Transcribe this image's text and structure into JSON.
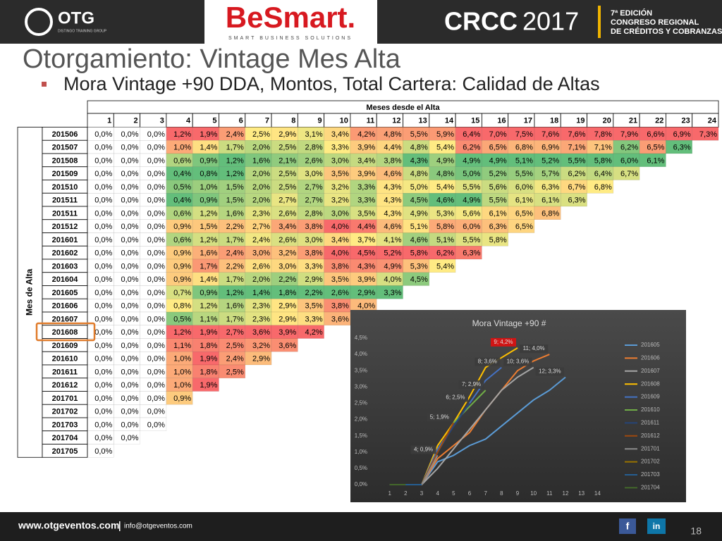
{
  "header": {
    "logo_otg": "OTG",
    "logo_otg_sub": "DISTINGO TRAINING GROUP",
    "besmart": "BeSmart.",
    "besmart_sub": "SMART BUSINESS SOLUTIONS",
    "crcc": "CRCC",
    "crcc_year": "2017",
    "edition": [
      "7ª EDICIÓN",
      "CONGRESO REGIONAL",
      "DE CRÉDITOS Y COBRANZAS"
    ]
  },
  "slide": {
    "title": "Otorgamiento: Vintage Mes Alta",
    "bullet": "Mora Vintage +90 DDA, Montos, Total Cartera: Calidad de Altas"
  },
  "table": {
    "top_header": "Meses desde el Alta",
    "row_header": "Mes de Alta",
    "columns": [
      1,
      2,
      3,
      4,
      5,
      6,
      7,
      8,
      9,
      10,
      11,
      12,
      13,
      14,
      15,
      16,
      17,
      18,
      19,
      20,
      21,
      22,
      23,
      24
    ],
    "rows": [
      {
        "label": "201506",
        "cells": [
          "0,0%",
          "0,0%",
          "0,0%",
          "1,2%",
          "1,9%",
          "2,4%",
          "2,5%",
          "2,9%",
          "3,1%",
          "3,4%",
          "4,2%",
          "4,8%",
          "5,5%",
          "5,9%",
          "6,4%",
          "7,0%",
          "7,5%",
          "7,6%",
          "7,6%",
          "7,8%",
          "7,9%",
          "6,6%",
          "6,9%",
          "7,3%"
        ]
      },
      {
        "label": "201507",
        "cells": [
          "0,0%",
          "0,0%",
          "0,0%",
          "1,0%",
          "1,4%",
          "1,7%",
          "2,0%",
          "2,5%",
          "2,8%",
          "3,3%",
          "3,9%",
          "4,4%",
          "4,8%",
          "5,4%",
          "6,2%",
          "6,5%",
          "6,8%",
          "6,9%",
          "7,1%",
          "7,1%",
          "6,2%",
          "6,5%",
          "6,3%"
        ]
      },
      {
        "label": "201508",
        "cells": [
          "0,0%",
          "0,0%",
          "0,0%",
          "0,6%",
          "0,9%",
          "1,2%",
          "1,6%",
          "2,1%",
          "2,6%",
          "3,0%",
          "3,4%",
          "3,8%",
          "4,3%",
          "4,9%",
          "4,9%",
          "4,9%",
          "5,1%",
          "5,2%",
          "5,5%",
          "5,8%",
          "6,0%",
          "6,1%"
        ]
      },
      {
        "label": "201509",
        "cells": [
          "0,0%",
          "0,0%",
          "0,0%",
          "0,4%",
          "0,8%",
          "1,2%",
          "2,0%",
          "2,5%",
          "3,0%",
          "3,5%",
          "3,9%",
          "4,6%",
          "4,8%",
          "4,8%",
          "5,0%",
          "5,2%",
          "5,5%",
          "5,7%",
          "6,2%",
          "6,4%",
          "6,7%"
        ]
      },
      {
        "label": "201510",
        "cells": [
          "0,0%",
          "0,0%",
          "0,0%",
          "0,5%",
          "1,0%",
          "1,5%",
          "2,0%",
          "2,5%",
          "2,7%",
          "3,2%",
          "3,3%",
          "4,3%",
          "5,0%",
          "5,4%",
          "5,5%",
          "5,6%",
          "6,0%",
          "6,3%",
          "6,7%",
          "6,8%"
        ]
      },
      {
        "label": "201511",
        "cells": [
          "0,0%",
          "0,0%",
          "0,0%",
          "0,4%",
          "0,9%",
          "1,5%",
          "2,0%",
          "2,7%",
          "2,7%",
          "3,2%",
          "3,3%",
          "4,3%",
          "4,5%",
          "4,6%",
          "4,9%",
          "5,5%",
          "6,1%",
          "6,1%",
          "6,3%"
        ]
      },
      {
        "label": "201511",
        "cells": [
          "0,0%",
          "0,0%",
          "0,0%",
          "0,6%",
          "1,2%",
          "1,6%",
          "2,3%",
          "2,6%",
          "2,8%",
          "3,0%",
          "3,5%",
          "4,3%",
          "4,9%",
          "5,3%",
          "5,6%",
          "6,1%",
          "6,5%",
          "6,8%"
        ]
      },
      {
        "label": "201512",
        "cells": [
          "0,0%",
          "0,0%",
          "0,0%",
          "0,9%",
          "1,5%",
          "2,2%",
          "2,7%",
          "3,4%",
          "3,8%",
          "4,0%",
          "4,4%",
          "4,6%",
          "5,1%",
          "5,8%",
          "6,0%",
          "6,3%",
          "6,5%"
        ]
      },
      {
        "label": "201601",
        "cells": [
          "0,0%",
          "0,0%",
          "0,0%",
          "0,6%",
          "1,2%",
          "1,7%",
          "2,4%",
          "2,6%",
          "3,0%",
          "3,4%",
          "3,7%",
          "4,1%",
          "4,6%",
          "5,1%",
          "5,5%",
          "5,8%"
        ]
      },
      {
        "label": "201602",
        "cells": [
          "0,0%",
          "0,0%",
          "0,0%",
          "0,9%",
          "1,6%",
          "2,4%",
          "3,0%",
          "3,2%",
          "3,8%",
          "4,0%",
          "4,5%",
          "5,2%",
          "5,8%",
          "6,2%",
          "6,3%"
        ]
      },
      {
        "label": "201603",
        "cells": [
          "0,0%",
          "0,0%",
          "0,0%",
          "0,9%",
          "1,7%",
          "2,2%",
          "2,6%",
          "3,0%",
          "3,3%",
          "3,8%",
          "4,3%",
          "4,9%",
          "5,3%",
          "5,4%"
        ]
      },
      {
        "label": "201604",
        "cells": [
          "0,0%",
          "0,0%",
          "0,0%",
          "0,9%",
          "1,4%",
          "1,7%",
          "2,0%",
          "2,2%",
          "2,9%",
          "3,5%",
          "3,9%",
          "4,0%",
          "4,5%"
        ]
      },
      {
        "label": "201605",
        "cells": [
          "0,0%",
          "0,0%",
          "0,0%",
          "0,7%",
          "0,9%",
          "1,2%",
          "1,4%",
          "1,8%",
          "2,2%",
          "2,6%",
          "2,9%",
          "3,3%"
        ]
      },
      {
        "label": "201606",
        "cells": [
          "0,0%",
          "0,0%",
          "0,0%",
          "0,8%",
          "1,2%",
          "1,6%",
          "2,3%",
          "2,9%",
          "3,5%",
          "3,8%",
          "4,0%"
        ]
      },
      {
        "label": "201607",
        "cells": [
          "0,0%",
          "0,0%",
          "0,0%",
          "0,5%",
          "1,1%",
          "1,7%",
          "2,3%",
          "2,9%",
          "3,3%",
          "3,6%"
        ]
      },
      {
        "label": "201608",
        "cells": [
          "0,0%",
          "0,0%",
          "0,0%",
          "1,2%",
          "1,9%",
          "2,7%",
          "3,6%",
          "3,9%",
          "4,2%"
        ]
      },
      {
        "label": "201609",
        "cells": [
          "0,0%",
          "0,0%",
          "0,0%",
          "1,1%",
          "1,8%",
          "2,5%",
          "3,2%",
          "3,6%"
        ]
      },
      {
        "label": "201610",
        "cells": [
          "0,0%",
          "0,0%",
          "0,0%",
          "1,0%",
          "1,9%",
          "2,4%",
          "2,9%"
        ]
      },
      {
        "label": "201611",
        "cells": [
          "0,0%",
          "0,0%",
          "0,0%",
          "1,0%",
          "1,8%",
          "2,5%"
        ]
      },
      {
        "label": "201612",
        "cells": [
          "0,0%",
          "0,0%",
          "0,0%",
          "1,0%",
          "1,9%"
        ]
      },
      {
        "label": "201701",
        "cells": [
          "0,0%",
          "0,0%",
          "0,0%",
          "0,9%"
        ]
      },
      {
        "label": "201702",
        "cells": [
          "0,0%",
          "0,0%",
          "0,0%"
        ]
      },
      {
        "label": "201703",
        "cells": [
          "0,0%",
          "0,0%",
          "0,0%"
        ]
      },
      {
        "label": "201704",
        "cells": [
          "0,0%",
          "0,0%"
        ]
      },
      {
        "label": "201705",
        "cells": [
          "0,0%"
        ]
      }
    ]
  },
  "chart_data": {
    "type": "line",
    "title": "Mora Vintage +90 #",
    "x": [
      1,
      2,
      3,
      4,
      5,
      6,
      7,
      8,
      9,
      10,
      11,
      12,
      13,
      14
    ],
    "xlim": [
      0,
      15
    ],
    "xticks": [
      1,
      2,
      3,
      4,
      5,
      6,
      7,
      8,
      9,
      10,
      11,
      12,
      13,
      14
    ],
    "ylim": [
      0,
      4.5
    ],
    "yticks": [
      {
        "value": 0,
        "label": "0,0%"
      },
      {
        "value": 0.5,
        "label": "0,5%"
      },
      {
        "value": 1,
        "label": "1,0%"
      },
      {
        "value": 1.5,
        "label": "1,5%"
      },
      {
        "value": 2,
        "label": "2,0%"
      },
      {
        "value": 2.5,
        "label": "2,5%"
      },
      {
        "value": 3,
        "label": "3,0%"
      },
      {
        "value": 3.5,
        "label": "3,5%"
      },
      {
        "value": 4,
        "label": "4,0%"
      },
      {
        "value": 4.5,
        "label": "4,5%"
      }
    ],
    "grid": false,
    "legend": "right",
    "series": [
      {
        "name": "201605",
        "color": "#5b9bd5",
        "values": [
          0,
          0,
          0,
          0.7,
          0.9,
          1.2,
          1.4,
          1.8,
          2.2,
          2.6,
          2.9,
          3.3,
          null,
          null
        ],
        "value_labels": [
          null,
          null,
          null,
          null,
          null,
          null,
          null,
          null,
          null,
          null,
          null,
          "12; 3,3%",
          null,
          null
        ]
      },
      {
        "name": "201606",
        "color": "#ed7d31",
        "values": [
          0,
          0,
          0,
          0.8,
          1.2,
          1.6,
          2.3,
          2.9,
          3.5,
          3.8,
          4.0,
          null,
          null,
          null
        ],
        "value_labels": [
          null,
          null,
          null,
          null,
          null,
          null,
          null,
          null,
          null,
          null,
          "11; 4,0%",
          null,
          null,
          null
        ]
      },
      {
        "name": "201607",
        "color": "#a5a5a5",
        "values": [
          0,
          0,
          0,
          0.5,
          1.1,
          1.7,
          2.3,
          2.9,
          3.3,
          3.6,
          null,
          null,
          null,
          null
        ],
        "value_labels": [
          null,
          null,
          null,
          null,
          null,
          null,
          null,
          null,
          null,
          "10; 3,6%",
          null,
          null,
          null,
          null
        ]
      },
      {
        "name": "201608",
        "color": "#ffc000",
        "label_color": "#e01010",
        "values": [
          0,
          0,
          0,
          1.2,
          1.9,
          2.7,
          3.6,
          3.9,
          4.2,
          null,
          null,
          null,
          null,
          null
        ],
        "value_labels": [
          null,
          null,
          null,
          null,
          null,
          null,
          null,
          null,
          "9; 4,2%",
          null,
          null,
          null,
          null,
          null
        ]
      },
      {
        "name": "201609",
        "color": "#4472c4",
        "values": [
          0,
          0,
          0,
          1.1,
          1.8,
          2.5,
          3.2,
          3.6,
          null,
          null,
          null,
          null,
          null,
          null
        ],
        "value_labels": [
          null,
          null,
          null,
          null,
          null,
          null,
          null,
          "8; 3,6%",
          null,
          null,
          null,
          null,
          null,
          null
        ]
      },
      {
        "name": "201610",
        "color": "#70ad47",
        "values": [
          0,
          0,
          0,
          1.0,
          1.9,
          2.4,
          2.9,
          null,
          null,
          null,
          null,
          null,
          null,
          null
        ],
        "value_labels": [
          null,
          null,
          null,
          null,
          null,
          null,
          "7; 2,9%",
          null,
          null,
          null,
          null,
          null,
          null,
          null
        ]
      },
      {
        "name": "201611",
        "color": "#264478",
        "values": [
          0,
          0,
          0,
          1.0,
          1.8,
          2.5,
          null,
          null,
          null,
          null,
          null,
          null,
          null,
          null
        ],
        "value_labels": [
          null,
          null,
          null,
          null,
          null,
          "6; 2,5%",
          null,
          null,
          null,
          null,
          null,
          null,
          null,
          null
        ]
      },
      {
        "name": "201612",
        "color": "#9e480e",
        "values": [
          0,
          0,
          0,
          1.0,
          1.9,
          null,
          null,
          null,
          null,
          null,
          null,
          null,
          null,
          null
        ],
        "value_labels": [
          null,
          null,
          null,
          null,
          "5; 1,9%",
          null,
          null,
          null,
          null,
          null,
          null,
          null,
          null,
          null
        ]
      },
      {
        "name": "201701",
        "color": "#8c8c8c",
        "values": [
          0,
          0,
          0,
          0.9,
          null,
          null,
          null,
          null,
          null,
          null,
          null,
          null,
          null,
          null
        ],
        "value_labels": [
          null,
          null,
          null,
          "4; 0,9%",
          null,
          null,
          null,
          null,
          null,
          null,
          null,
          null,
          null,
          null
        ]
      },
      {
        "name": "201702",
        "color": "#997300",
        "values": [
          0,
          0,
          0,
          null,
          null,
          null,
          null,
          null,
          null,
          null,
          null,
          null,
          null,
          null
        ]
      },
      {
        "name": "201703",
        "color": "#255e91",
        "values": [
          0,
          0,
          0,
          null,
          null,
          null,
          null,
          null,
          null,
          null,
          null,
          null,
          null,
          null
        ]
      },
      {
        "name": "201704",
        "color": "#43682b",
        "values": [
          0,
          0,
          null,
          null,
          null,
          null,
          null,
          null,
          null,
          null,
          null,
          null,
          null,
          null
        ]
      }
    ]
  },
  "footer": {
    "web": "www.otgeventos.com",
    "email": "info@otgeventos.com",
    "page": "18",
    "facebook": "f",
    "linkedin": "in"
  }
}
